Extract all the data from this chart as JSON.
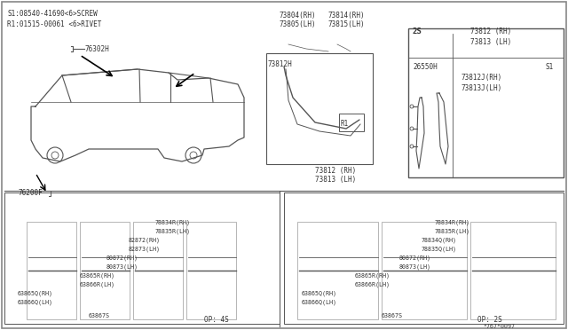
{
  "bg_color": "#ffffff",
  "line_color": "#555555",
  "text_color": "#333333",
  "s1_label_simple": "S1:08540-41690<6>SCREW",
  "r1_label_simple": "R1:01515-00061 <6>RIVET",
  "part_76302H": "76302H",
  "part_76200F": "76200F",
  "op4s_label": "OP: 4S",
  "op2s_label": "OP: 2S",
  "diagram_num": "*767*0097"
}
